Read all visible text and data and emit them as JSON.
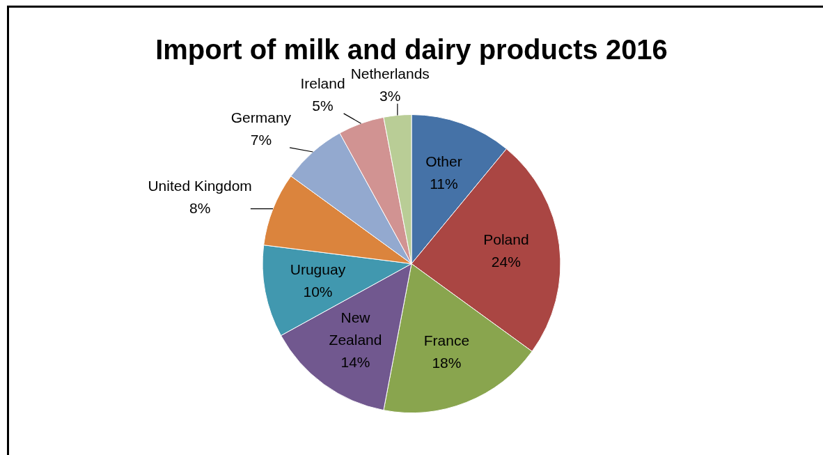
{
  "chart_data": {
    "type": "pie",
    "title": "Import of milk and dairy products 2016",
    "categories": [
      "Other",
      "Poland",
      "France",
      "New Zealand",
      "Uruguay",
      "United Kingdom",
      "Germany",
      "Ireland",
      "Netherlands"
    ],
    "values": [
      11,
      24,
      18,
      14,
      10,
      8,
      7,
      5,
      3
    ],
    "value_labels": [
      "11%",
      "24%",
      "18%",
      "14%",
      "10%",
      "8%",
      "7%",
      "5%",
      "3%"
    ],
    "colors": [
      "#4572a7",
      "#aa4643",
      "#89a54e",
      "#71588f",
      "#4198af",
      "#db843d",
      "#93a9cf",
      "#d19392",
      "#b9cd96"
    ],
    "legend": false
  }
}
